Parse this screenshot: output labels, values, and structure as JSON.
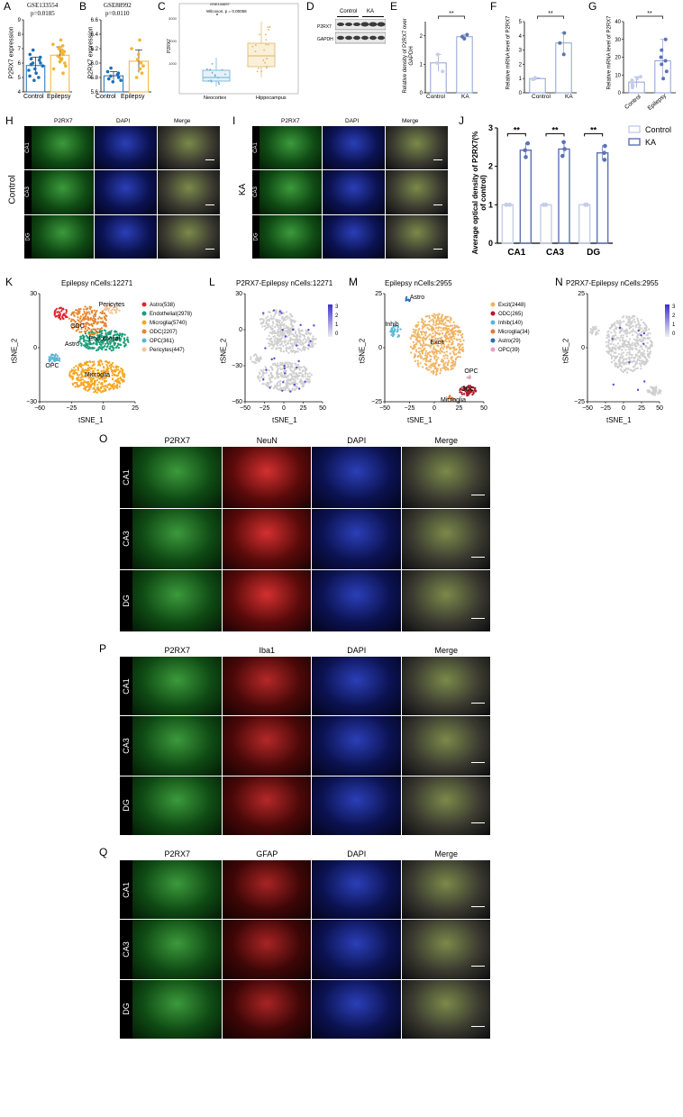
{
  "panel_letters": [
    "A",
    "B",
    "C",
    "D",
    "E",
    "F",
    "G",
    "H",
    "I",
    "J",
    "K",
    "L",
    "M",
    "N",
    "O",
    "P",
    "Q"
  ],
  "panelA": {
    "title": "GSE133554",
    "pval": "p=0.0185",
    "ylabel": "P2RX7 expression",
    "xcats": [
      "Control",
      "Epilepsy"
    ]
  },
  "panelB": {
    "title": "GSE88992",
    "pval": "p=0.0110",
    "ylabel": "P2RX7 expression",
    "xcats": [
      "Control",
      "Epilepsy"
    ]
  },
  "panelC": {
    "title": "GSE134697",
    "pval": "Wilcoxon, p = 0.00058",
    "ylabel": "P2RX7",
    "xcats": [
      "Neocortex",
      "Hippocampus"
    ]
  },
  "panelD": {
    "labels": [
      "Control",
      "KA"
    ],
    "rows": [
      "P2RX7",
      "GAPDH"
    ]
  },
  "panelE": {
    "ylabel": "Relative density of P2RX7 over GAPDH",
    "xcats": [
      "Control",
      "KA"
    ],
    "sig": "**"
  },
  "panelF": {
    "ylabel": "Relative mRNA level of P2RX7",
    "xcats": [
      "Control",
      "KA"
    ],
    "sig": "**"
  },
  "panelG": {
    "ylabel": "Relative mRNA level of P2RX7",
    "xcats": [
      "Control",
      "Epilepsy"
    ],
    "sig": "**"
  },
  "panelH": {
    "group": "Control",
    "cols": [
      "P2RX7",
      "DAPI",
      "Merge"
    ],
    "rows": [
      "CA1",
      "CA3",
      "DG"
    ]
  },
  "panelI": {
    "group": "KA",
    "cols": [
      "P2RX7",
      "DAPI",
      "Merge"
    ],
    "rows": [
      "CA1",
      "CA3",
      "DG"
    ]
  },
  "panelJ": {
    "ylabel": "Average optical density of P2RX7(% of control)",
    "legend": [
      "Control",
      "KA"
    ],
    "sig": [
      "**",
      "**",
      "**"
    ]
  },
  "panelK": {
    "title": "Epilepsy nCells:12271",
    "xlabel": "tSNE_1",
    "ylabel": "tSNE_2",
    "legend": [
      "Astro(538)",
      "Endothelial(2978)",
      "Microglia(5740)",
      "ODC(2207)",
      "OPC(361)",
      "Pericytes(447)"
    ],
    "legend_colors": [
      "#e0262b",
      "#1b9e77",
      "#f5a623",
      "#e8842c",
      "#5ab4d6",
      "#f2c49b"
    ],
    "cluster_labels": [
      "Pericytes",
      "ODC",
      "Endothelial",
      "Astro",
      "OPC",
      "Microglia"
    ]
  },
  "panelL": {
    "title": "P2RX7-Epilepsy nCells:12271",
    "xlabel": "tSNE_1",
    "ylabel": "tSNE_2",
    "scale": [
      "3",
      "2",
      "1",
      "0"
    ]
  },
  "panelM": {
    "title": "Epilepsy nCells:2955",
    "xlabel": "tSNE_1",
    "ylabel": "tSNE_2",
    "legend": [
      "Excit(2448)",
      "ODC(265)",
      "Inhib(140)",
      "Microglia(34)",
      "Astro(29)",
      "OPC(39)"
    ],
    "legend_colors": [
      "#f0b463",
      "#b5182a",
      "#5ab4d6",
      "#e07b39",
      "#2b6fb0",
      "#e6a0c0"
    ],
    "cluster_labels": [
      "Astro",
      "Inhib",
      "Excit",
      "OPC",
      "ODC",
      "Microglia"
    ]
  },
  "panelN": {
    "title": "P2RX7-Epilepsy nCells:2955",
    "xlabel": "tSNE_1",
    "ylabel": "tSNE_2",
    "scale": [
      "3",
      "2",
      "1",
      "0"
    ]
  },
  "panelO": {
    "cols": [
      "P2RX7",
      "NeuN",
      "DAPI",
      "Merge"
    ],
    "rows": [
      "CA1",
      "CA3",
      "DG"
    ]
  },
  "panelP": {
    "cols": [
      "P2RX7",
      "Iba1",
      "DAPI",
      "Merge"
    ],
    "rows": [
      "CA1",
      "CA3",
      "DG"
    ]
  },
  "panelQ": {
    "cols": [
      "P2RX7",
      "GFAP",
      "DAPI",
      "Merge"
    ],
    "rows": [
      "CA1",
      "CA3",
      "DG"
    ]
  },
  "chart_data": [
    {
      "type": "scatter",
      "panel": "A",
      "categories": [
        "Control",
        "Epilepsy"
      ],
      "ylim": [
        4,
        9
      ],
      "yticks": [
        "4",
        "5",
        "6",
        "7",
        "8",
        "9"
      ],
      "series": [
        {
          "name": "Control",
          "values": [
            6.9,
            6.6,
            6.4,
            6.2,
            6.0,
            6.0,
            5.9,
            5.8,
            5.6,
            5.5,
            5.3,
            5.1,
            5.0,
            4.8,
            6.3
          ]
        },
        {
          "name": "Epilepsy",
          "values": [
            7.6,
            7.3,
            7.1,
            7.0,
            6.9,
            6.8,
            6.7,
            6.6,
            6.5,
            6.4,
            6.3,
            6.2,
            6.1,
            6.0,
            5.8,
            5.6,
            5.3,
            7.2,
            6.9,
            6.6
          ]
        }
      ]
    },
    {
      "type": "scatter",
      "panel": "B",
      "categories": [
        "Control",
        "Epilepsy"
      ],
      "ylim": [
        5.6,
        6.6
      ],
      "yticks": [
        "5.6",
        "5.8",
        "6.0",
        "6.2",
        "6.4",
        "6.6"
      ],
      "series": [
        {
          "name": "Control",
          "values": [
            5.93,
            5.88,
            5.86,
            5.84,
            5.82,
            5.8,
            5.78,
            5.76,
            5.74
          ]
        },
        {
          "name": "Epilepsy",
          "values": [
            6.32,
            6.2,
            6.12,
            6.05,
            6.0,
            5.96,
            5.92,
            5.86,
            5.8
          ]
        }
      ]
    },
    {
      "type": "bar",
      "panel": "E",
      "categories": [
        "Control",
        "KA"
      ],
      "values": [
        1.05,
        1.97
      ],
      "ylim": [
        0,
        2.5
      ],
      "yticks": [
        "0",
        "1",
        "2"
      ],
      "points": [
        [
          0.75,
          1.05,
          1.35
        ],
        [
          1.9,
          1.97,
          2.04
        ]
      ]
    },
    {
      "type": "bar",
      "panel": "F",
      "categories": [
        "Control",
        "KA"
      ],
      "values": [
        1.0,
        3.5
      ],
      "ylim": [
        0,
        5
      ],
      "yticks": [
        "0",
        "1",
        "2",
        "3",
        "4",
        "5"
      ],
      "points": [
        [
          0.95,
          1.0,
          1.05
        ],
        [
          2.7,
          3.5,
          4.2
        ]
      ]
    },
    {
      "type": "bar",
      "panel": "G",
      "categories": [
        "Control",
        "Epilepsy"
      ],
      "values": [
        6,
        18
      ],
      "ylim": [
        0,
        40
      ],
      "yticks": [
        "0",
        "10",
        "20",
        "30",
        "40"
      ],
      "points": [
        [
          3,
          4,
          5,
          6,
          7,
          8,
          9
        ],
        [
          8,
          12,
          16,
          18,
          20,
          24,
          30
        ]
      ]
    },
    {
      "type": "bar",
      "panel": "J",
      "categories": [
        "CA1",
        "CA3",
        "DG"
      ],
      "ylim": [
        0,
        3
      ],
      "yticks": [
        "0",
        "1",
        "2",
        "3"
      ],
      "series": [
        {
          "name": "Control",
          "values": [
            1.0,
            1.0,
            1.0
          ]
        },
        {
          "name": "KA",
          "values": [
            2.42,
            2.45,
            2.35
          ]
        }
      ]
    }
  ]
}
